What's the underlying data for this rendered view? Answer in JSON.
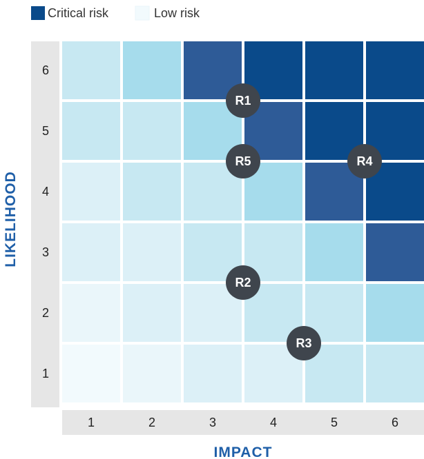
{
  "chart_data": {
    "type": "heatmap",
    "legend": [
      {
        "label": "Critical risk",
        "color": "#0A4A8A"
      },
      {
        "label": "Low risk",
        "color": "#F2FAFD"
      }
    ],
    "xlabel": "IMPACT",
    "ylabel": "LIKELIHOOD",
    "x_ticks": [
      "1",
      "2",
      "3",
      "4",
      "5",
      "6"
    ],
    "y_ticks": [
      "6",
      "5",
      "4",
      "3",
      "2",
      "1"
    ],
    "grid_levels": [
      [
        1,
        2,
        7,
        8,
        8,
        8
      ],
      [
        1,
        1,
        2,
        7,
        8,
        8
      ],
      [
        0,
        1,
        1,
        2,
        7,
        8
      ],
      [
        0,
        0,
        1,
        1,
        2,
        7
      ],
      [
        -1,
        0,
        0,
        1,
        1,
        2
      ],
      [
        -2,
        -1,
        0,
        0,
        1,
        1
      ]
    ],
    "level_colors": {
      "-2": "#F2FAFD",
      "-1": "#EAF6FA",
      "0": "#DCF0F7",
      "1": "#C7E8F2",
      "2": "#A6DCEC",
      "7": "#2E5B97",
      "8": "#0A4A8A"
    },
    "risks": [
      {
        "label": "R1",
        "impact": 3.5,
        "likelihood": 5.5
      },
      {
        "label": "R5",
        "impact": 3.5,
        "likelihood": 4.5
      },
      {
        "label": "R4",
        "impact": 5.5,
        "likelihood": 4.5
      },
      {
        "label": "R2",
        "impact": 3.5,
        "likelihood": 2.5
      },
      {
        "label": "R3",
        "impact": 4.5,
        "likelihood": 1.5
      }
    ],
    "colors": {
      "axis_text": "#1F5FA8",
      "tick_bg": "#E6E6E6",
      "marker": "#3F454D",
      "marker_text": "#FFFFFF"
    }
  }
}
